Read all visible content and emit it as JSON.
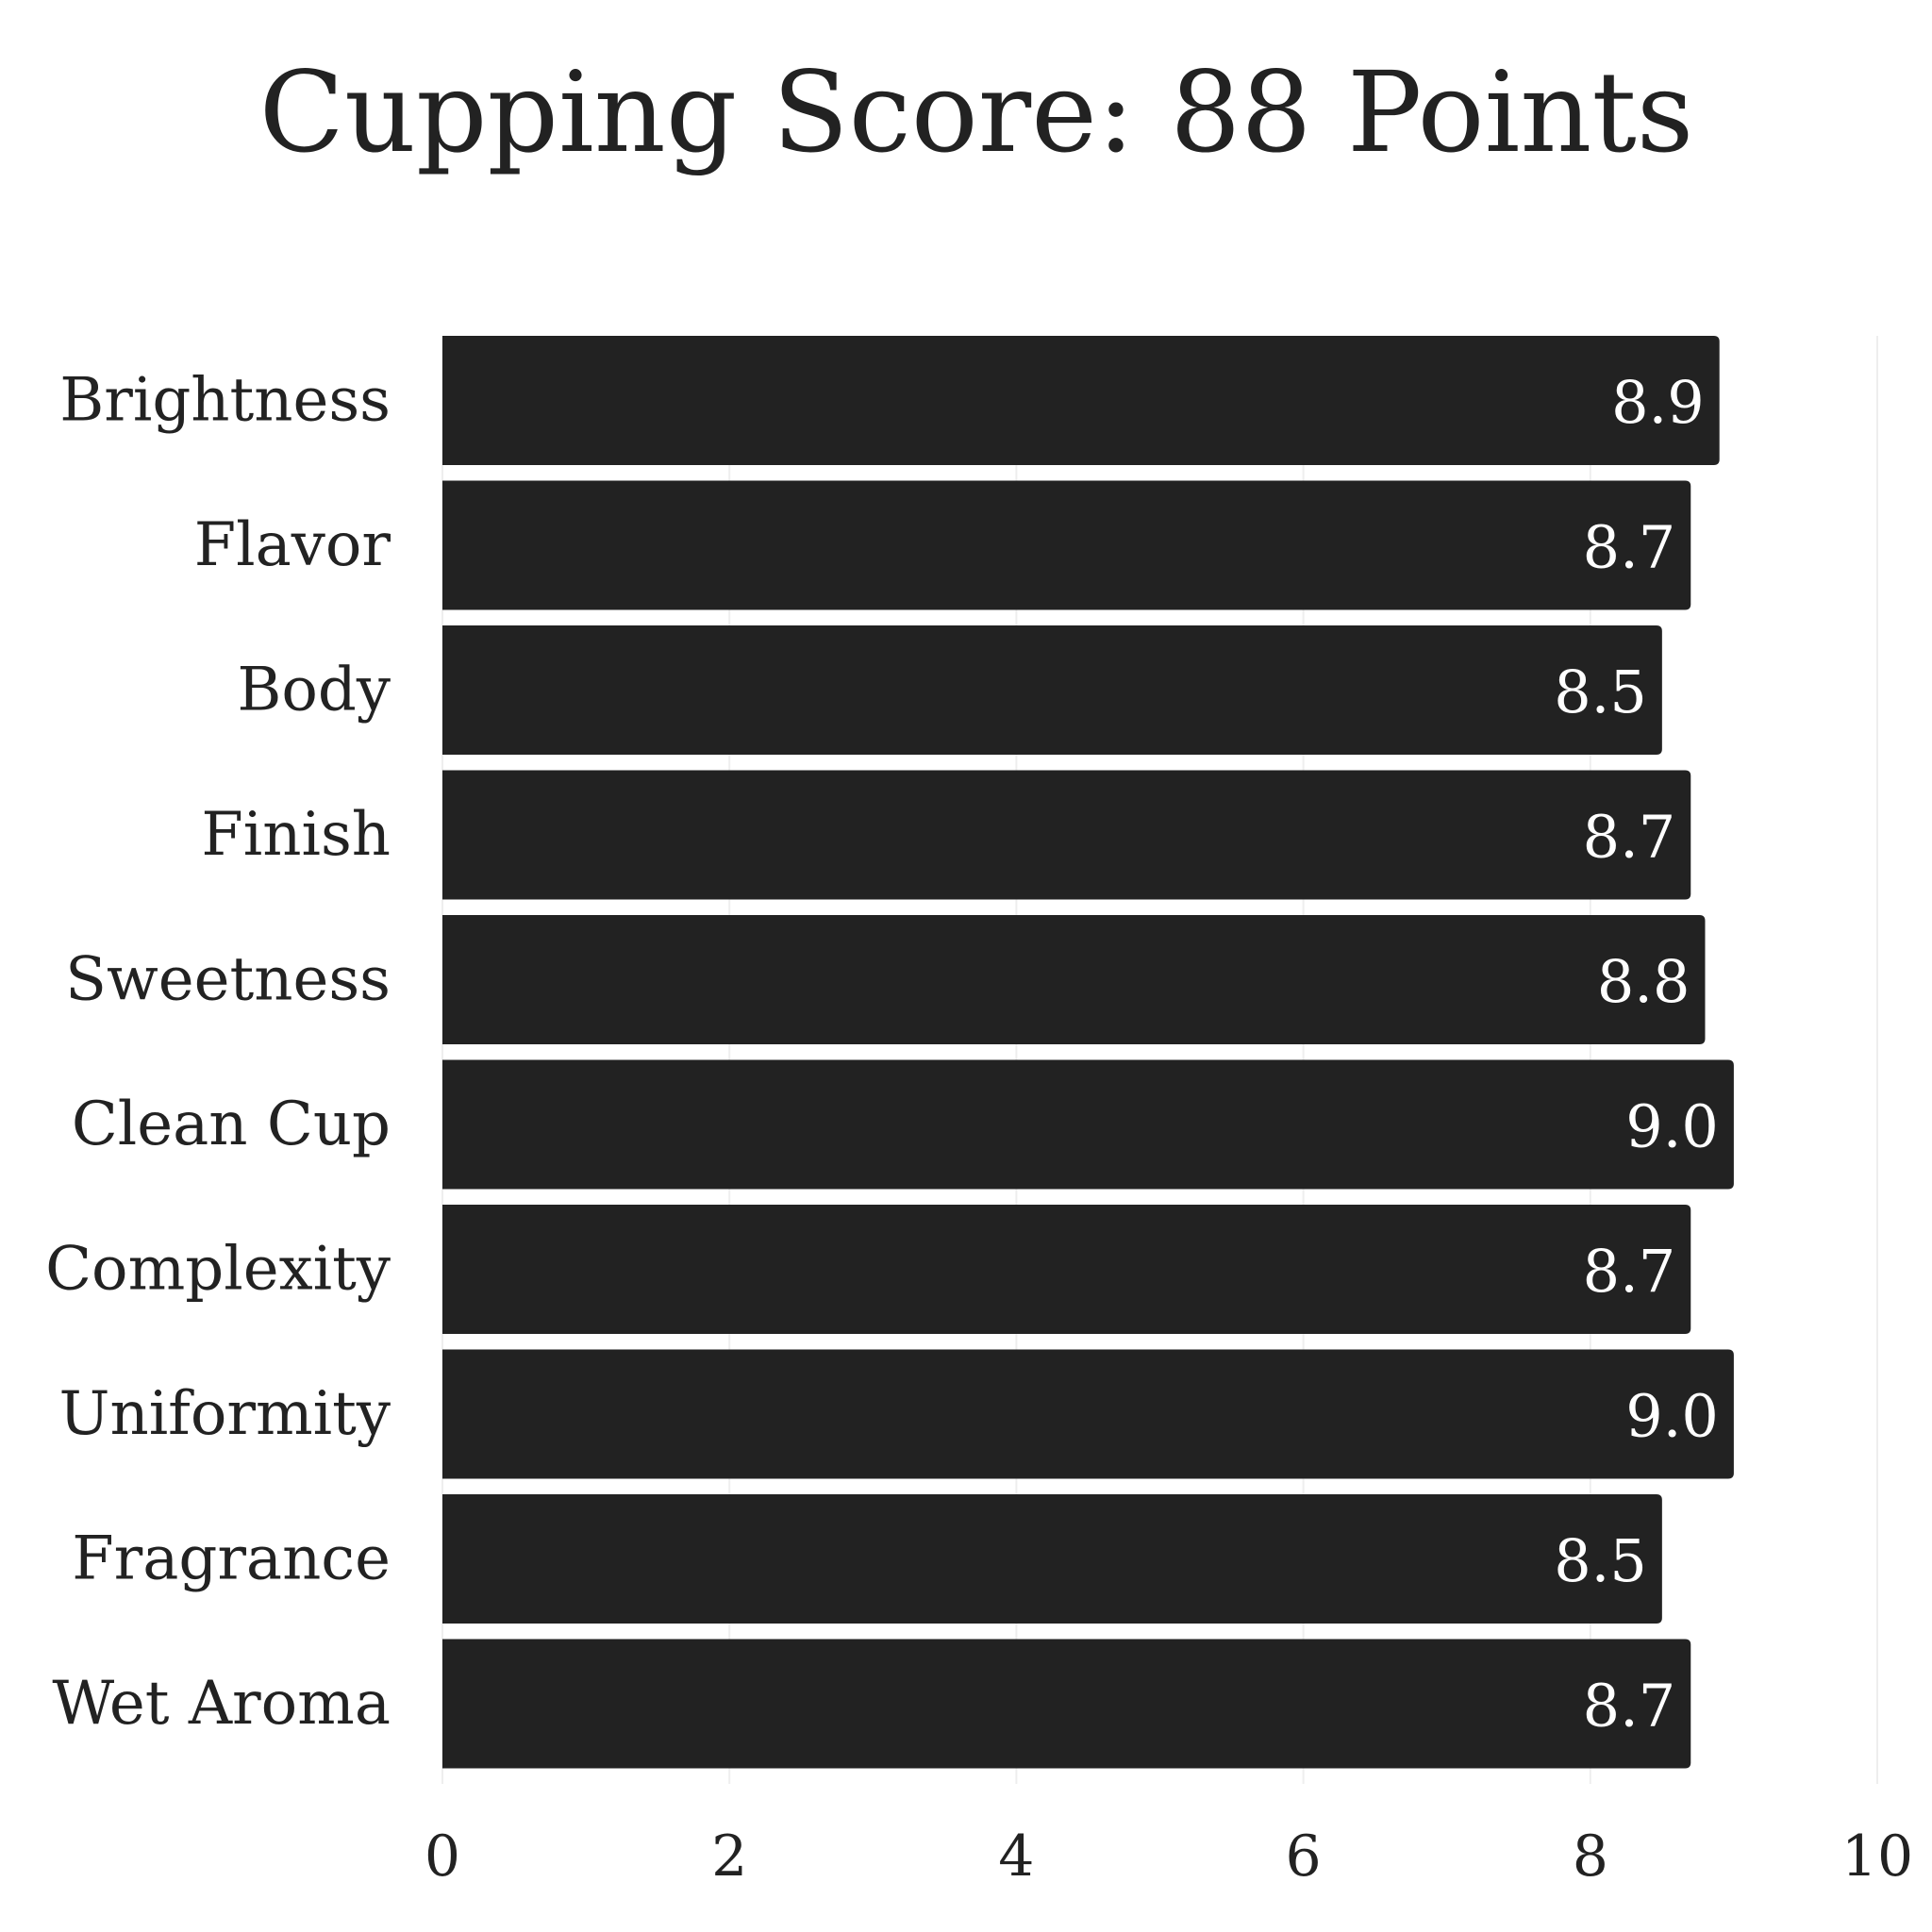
{
  "chart_data": {
    "type": "bar",
    "orientation": "horizontal",
    "title": "Cupping Score: 88 Points",
    "xlabel": "",
    "ylabel": "",
    "categories": [
      "Brightness",
      "Flavor",
      "Body",
      "Finish",
      "Sweetness",
      "Clean Cup",
      "Complexity",
      "Uniformity",
      "Fragrance",
      "Wet Aroma"
    ],
    "values": [
      8.9,
      8.7,
      8.5,
      8.7,
      8.8,
      9.0,
      8.7,
      9.0,
      8.5,
      8.7
    ],
    "value_labels": [
      "8.9",
      "8.7",
      "8.5",
      "8.7",
      "8.8",
      "9.0",
      "8.7",
      "9.0",
      "8.5",
      "8.7"
    ],
    "xlim": [
      0,
      10
    ],
    "xticks": [
      0,
      2,
      4,
      6,
      8,
      10
    ],
    "xtick_labels": [
      "0",
      "2",
      "4",
      "6",
      "8",
      "10"
    ],
    "grid": true,
    "legend": "none",
    "bar_color": "#222222",
    "value_label_color": "#ffffff",
    "text_color": "#222222",
    "grid_color": "#eeeeee",
    "background": "#ffffff"
  }
}
